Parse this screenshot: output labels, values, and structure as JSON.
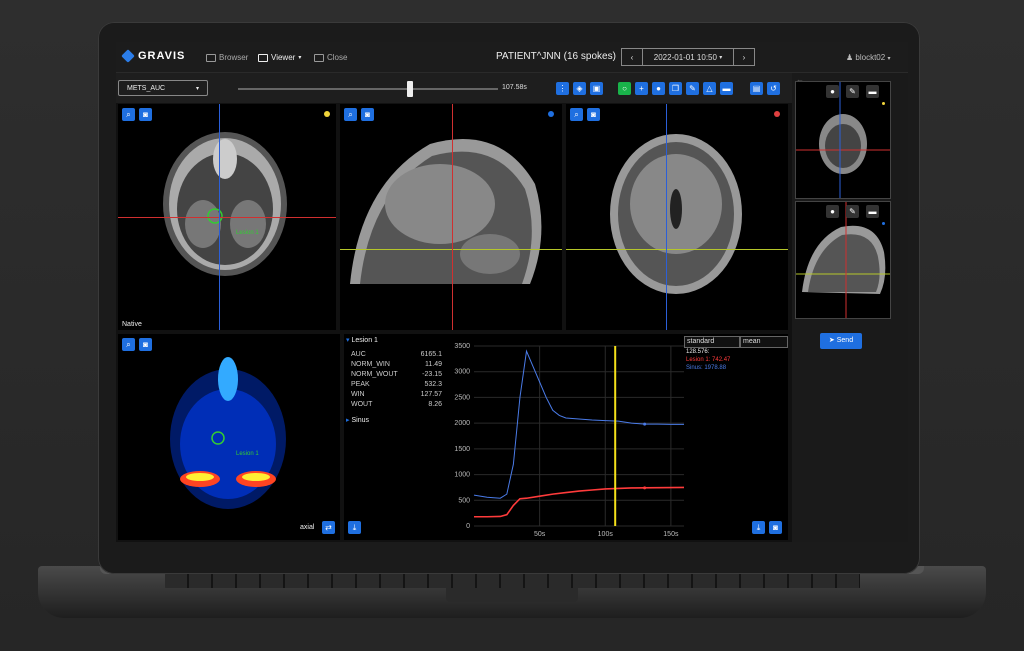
{
  "app": {
    "logo": "GRAVIS"
  },
  "nav": {
    "browser": "Browser",
    "viewer": "Viewer",
    "close": "Close",
    "title": "PATIENT^JNN (16 spokes)",
    "date": "2022-01-01 10:50",
    "user": "blockt02"
  },
  "toolbar": {
    "map_select": "METS_AUC",
    "time_value": "107.58s",
    "time_position": 0.66
  },
  "viewports": {
    "axial_label": "Native",
    "lesion_label": "Lesion 1",
    "map_label": "axial",
    "map_lesion_label": "Lesion 1",
    "dot_colors": [
      "#f0d43a",
      "#1f6fe0",
      "#e04040"
    ]
  },
  "stats": {
    "lesion_header": "Lesion 1",
    "rows": [
      {
        "k": "AUC",
        "v": "6165.1"
      },
      {
        "k": "NORM_WIN",
        "v": "11.49"
      },
      {
        "k": "NORM_WOUT",
        "v": "-23.15"
      },
      {
        "k": "PEAK",
        "v": "532.3"
      },
      {
        "k": "WIN",
        "v": "127.57"
      },
      {
        "k": "WOUT",
        "v": "8.26"
      }
    ],
    "sinus_header": "Sinus"
  },
  "legend": {
    "standard_select": "standard",
    "mean_select": "mean",
    "time": "128.576:",
    "lesion": "Lesion 1: 742.47",
    "sinus": "Sinus: 1978.88",
    "lesion_color": "#ff3b3b",
    "sinus_color": "#4a7be8"
  },
  "chart_data": {
    "type": "line",
    "x_tick_labels": [
      "50s",
      "100s",
      "150s"
    ],
    "y_tick_labels": [
      "0",
      "500",
      "1000",
      "1500",
      "2000",
      "2500",
      "3000",
      "3500"
    ],
    "xlim": [
      0,
      160
    ],
    "ylim": [
      0,
      3500
    ],
    "cursor_x": 107.58,
    "series": [
      {
        "name": "Sinus",
        "color": "#4a7be8",
        "x": [
          0,
          10,
          20,
          25,
          30,
          35,
          40,
          45,
          50,
          55,
          60,
          65,
          70,
          80,
          90,
          100,
          110,
          120,
          130,
          140,
          150,
          160
        ],
        "y": [
          600,
          560,
          540,
          620,
          1200,
          2500,
          3400,
          3100,
          2800,
          2500,
          2250,
          2150,
          2100,
          2080,
          2060,
          2050,
          2040,
          2000,
          1980,
          1980,
          1975,
          1975
        ]
      },
      {
        "name": "Lesion 1",
        "color": "#ff3b3b",
        "x": [
          0,
          10,
          20,
          25,
          30,
          35,
          40,
          50,
          60,
          70,
          80,
          90,
          100,
          110,
          120,
          130,
          140,
          150,
          160
        ],
        "y": [
          180,
          180,
          185,
          220,
          400,
          530,
          540,
          580,
          620,
          650,
          680,
          700,
          720,
          730,
          740,
          742,
          745,
          748,
          750
        ]
      }
    ]
  },
  "sidebar": {
    "send_label": "Send"
  }
}
